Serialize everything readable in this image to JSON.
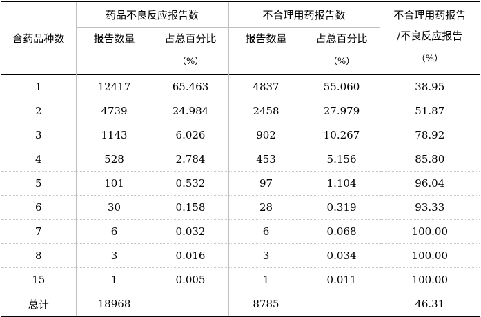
{
  "header": {
    "col1": "含药品种数",
    "group_adr": "药品不良反应报告数",
    "group_irr": "不合理用药报告数",
    "ratio_line1": "不合理用药报告",
    "ratio_line2": "/不良反应报告",
    "ratio_unit": "（%）",
    "count_label": "报告数量",
    "pct_label": "占总百分比",
    "pct_unit": "（%）"
  },
  "rows": [
    {
      "kinds": "1",
      "adr_count": "12417",
      "adr_pct": "65.463",
      "irr_count": "4837",
      "irr_pct": "55.060",
      "ratio": "38.95"
    },
    {
      "kinds": "2",
      "adr_count": "4739",
      "adr_pct": "24.984",
      "irr_count": "2458",
      "irr_pct": "27.979",
      "ratio": "51.87"
    },
    {
      "kinds": "3",
      "adr_count": "1143",
      "adr_pct": "6.026",
      "irr_count": "902",
      "irr_pct": "10.267",
      "ratio": "78.92"
    },
    {
      "kinds": "4",
      "adr_count": "528",
      "adr_pct": "2.784",
      "irr_count": "453",
      "irr_pct": "5.156",
      "ratio": "85.80"
    },
    {
      "kinds": "5",
      "adr_count": "101",
      "adr_pct": "0.532",
      "irr_count": "97",
      "irr_pct": "1.104",
      "ratio": "96.04"
    },
    {
      "kinds": "6",
      "adr_count": "30",
      "adr_pct": "0.158",
      "irr_count": "28",
      "irr_pct": "0.319",
      "ratio": "93.33"
    },
    {
      "kinds": "7",
      "adr_count": "6",
      "adr_pct": "0.032",
      "irr_count": "6",
      "irr_pct": "0.068",
      "ratio": "100.00"
    },
    {
      "kinds": "8",
      "adr_count": "3",
      "adr_pct": "0.016",
      "irr_count": "3",
      "irr_pct": "0.034",
      "ratio": "100.00"
    },
    {
      "kinds": "15",
      "adr_count": "1",
      "adr_pct": "0.005",
      "irr_count": "1",
      "irr_pct": "0.011",
      "ratio": "100.00"
    }
  ],
  "total": {
    "label": "总计",
    "adr_count": "18968",
    "irr_count": "8785",
    "ratio": "46.31"
  }
}
